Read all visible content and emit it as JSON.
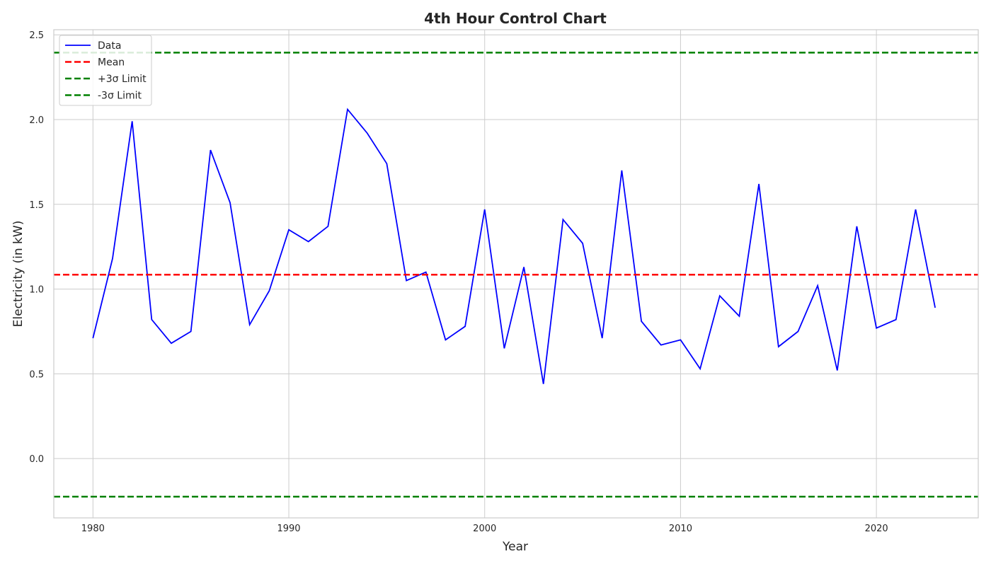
{
  "chart_data": {
    "type": "line",
    "title": "4th Hour Control Chart",
    "xlabel": "Year",
    "ylabel": "Electricity (in kW)",
    "xlim": [
      1978,
      2025.2
    ],
    "ylim": [
      -0.35,
      2.53
    ],
    "xticks": [
      1980,
      1990,
      2000,
      2010,
      2020
    ],
    "yticks": [
      0.0,
      0.5,
      1.0,
      1.5,
      2.0,
      2.5
    ],
    "ytick_labels": [
      "0.0",
      "0.5",
      "1.0",
      "1.5",
      "2.0",
      "2.5"
    ],
    "grid": true,
    "legend_position": "top-left",
    "series": [
      {
        "name": "Data",
        "color": "#0000ff",
        "style": "solid",
        "x": [
          1980,
          1981,
          1982,
          1983,
          1984,
          1985,
          1986,
          1987,
          1988,
          1989,
          1990,
          1991,
          1992,
          1993,
          1994,
          1995,
          1996,
          1997,
          1998,
          1999,
          2000,
          2001,
          2002,
          2003,
          2004,
          2005,
          2006,
          2007,
          2008,
          2009,
          2010,
          2011,
          2012,
          2013,
          2014,
          2015,
          2016,
          2017,
          2018,
          2019,
          2020,
          2021,
          2022,
          2023
        ],
        "y": [
          0.71,
          1.18,
          1.99,
          0.82,
          0.68,
          0.75,
          1.82,
          1.51,
          0.79,
          0.99,
          1.35,
          1.28,
          1.37,
          2.06,
          1.92,
          1.74,
          1.05,
          1.1,
          0.7,
          0.78,
          1.47,
          0.65,
          1.13,
          0.44,
          1.41,
          1.27,
          0.71,
          1.7,
          0.81,
          0.67,
          0.7,
          0.53,
          0.96,
          0.84,
          1.62,
          0.66,
          0.75,
          1.02,
          0.52,
          1.37,
          0.77,
          0.82,
          1.47,
          0.89
        ]
      },
      {
        "name": "Mean",
        "color": "#ff0000",
        "style": "dashed",
        "value": 1.085
      },
      {
        "name": "+3σ Limit",
        "color": "#008000",
        "style": "dashed",
        "value": 2.395
      },
      {
        "name": "-3σ Limit",
        "color": "#008000",
        "style": "dashed",
        "value": -0.225
      }
    ]
  }
}
